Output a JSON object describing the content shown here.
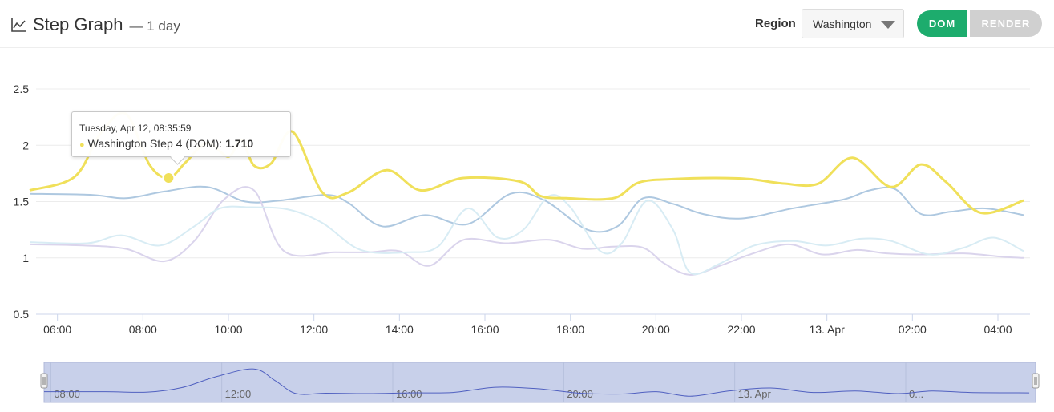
{
  "header": {
    "title": "Step Graph",
    "subtitle": "— 1 day",
    "title_icon": "line-chart-icon",
    "region_label": "Region",
    "region_value": "Washington",
    "dom_label": "DOM",
    "render_label": "RENDER"
  },
  "tooltip": {
    "date": "Tuesday, Apr 12, 08:35:59",
    "series_label": "Washington Step 4 (DOM):",
    "value": "1.710"
  },
  "colors": {
    "accent_green": "#1dac6d",
    "inactive_grey": "#d0d0d0",
    "highlight_yellow": "#f0e05a"
  },
  "chart_data": {
    "type": "line",
    "x_unit": "hours",
    "xlim": [
      5.5,
      28.75
    ],
    "ylim": [
      0.5,
      2.6
    ],
    "y_ticks": [
      {
        "value": 0.5,
        "label": "0.5"
      },
      {
        "value": 1,
        "label": "1"
      },
      {
        "value": 1.5,
        "label": "1.5"
      },
      {
        "value": 2,
        "label": "2"
      },
      {
        "value": 2.5,
        "label": "2.5"
      }
    ],
    "x_ticks": [
      {
        "value": 6,
        "label": "06:00"
      },
      {
        "value": 8,
        "label": "08:00"
      },
      {
        "value": 10,
        "label": "10:00"
      },
      {
        "value": 12,
        "label": "12:00"
      },
      {
        "value": 14,
        "label": "14:00"
      },
      {
        "value": 16,
        "label": "16:00"
      },
      {
        "value": 18,
        "label": "18:00"
      },
      {
        "value": 20,
        "label": "20:00"
      },
      {
        "value": 22,
        "label": "22:00"
      },
      {
        "value": 24,
        "label": "13. Apr"
      },
      {
        "value": 26,
        "label": "02:00"
      },
      {
        "value": 28,
        "label": "04:00"
      }
    ],
    "navigator_labels": [
      {
        "value": 8,
        "label": "08:00"
      },
      {
        "value": 12,
        "label": "12:00"
      },
      {
        "value": 16,
        "label": "16:00"
      },
      {
        "value": 20,
        "label": "20:00"
      },
      {
        "value": 24,
        "label": "13. Apr"
      },
      {
        "value": 28,
        "label": "0..."
      }
    ],
    "grid": true,
    "series": [
      {
        "color": "#aec8e0",
        "x": [
          5.35,
          6.8,
          7.6,
          8.5,
          9.5,
          10.4,
          11.2,
          12.3,
          12.8,
          13.6,
          14.6,
          15.6,
          16.6,
          17.4,
          18.4,
          19.1,
          19.7,
          20.4,
          21.1,
          22.0,
          23.2,
          24.4,
          25.0,
          25.6,
          26.2,
          26.9,
          27.7,
          28.6
        ],
        "y": [
          1.57,
          1.56,
          1.53,
          1.59,
          1.63,
          1.5,
          1.51,
          1.56,
          1.49,
          1.28,
          1.38,
          1.3,
          1.57,
          1.51,
          1.25,
          1.28,
          1.53,
          1.48,
          1.39,
          1.35,
          1.44,
          1.52,
          1.6,
          1.61,
          1.39,
          1.41,
          1.44,
          1.38
        ]
      },
      {
        "color": "#dad4ec",
        "x": [
          5.35,
          6.6,
          7.6,
          8.5,
          9.2,
          9.9,
          10.6,
          11.3,
          12.5,
          13.3,
          14.0,
          14.7,
          15.5,
          16.5,
          17.5,
          18.3,
          19.0,
          19.7,
          20.2,
          20.8,
          21.5,
          22.2,
          23.1,
          23.9,
          24.7,
          25.4,
          26.2,
          27.2,
          28.1,
          28.6
        ],
        "y": [
          1.12,
          1.11,
          1.08,
          0.97,
          1.15,
          1.52,
          1.6,
          1.06,
          1.05,
          1.05,
          1.06,
          0.93,
          1.16,
          1.13,
          1.16,
          1.08,
          1.1,
          1.09,
          0.95,
          0.85,
          0.93,
          1.03,
          1.12,
          1.03,
          1.07,
          1.04,
          1.03,
          1.04,
          1.01,
          1.0
        ]
      },
      {
        "color": "#d8ecf4",
        "x": [
          5.35,
          6.7,
          7.5,
          8.4,
          9.2,
          9.8,
          10.5,
          11.4,
          12.2,
          13.1,
          14.2,
          14.9,
          15.6,
          16.3,
          16.9,
          17.5,
          18.0,
          18.7,
          19.2,
          19.8,
          20.4,
          20.8,
          21.5,
          22.3,
          23.2,
          24.0,
          24.8,
          25.5,
          26.4,
          27.2,
          27.9,
          28.6
        ],
        "y": [
          1.14,
          1.13,
          1.2,
          1.11,
          1.28,
          1.44,
          1.45,
          1.43,
          1.31,
          1.07,
          1.05,
          1.1,
          1.44,
          1.18,
          1.25,
          1.55,
          1.45,
          1.06,
          1.13,
          1.51,
          1.25,
          0.87,
          0.95,
          1.11,
          1.15,
          1.11,
          1.17,
          1.15,
          1.03,
          1.09,
          1.18,
          1.06
        ]
      },
      {
        "color": "#f0e05a",
        "x": [
          5.35,
          6.4,
          7.0,
          7.6,
          8.15,
          8.6,
          9.0,
          9.5,
          10.0,
          10.3,
          10.6,
          11.0,
          11.5,
          12.2,
          12.8,
          13.7,
          14.5,
          15.5,
          16.8,
          17.3,
          17.9,
          19.0,
          19.6,
          20.4,
          21.4,
          22.2,
          23.0,
          23.8,
          24.6,
          25.5,
          26.2,
          26.8,
          27.6,
          28.6
        ],
        "y": [
          1.6,
          1.72,
          2.1,
          2.28,
          1.83,
          1.71,
          1.85,
          2.02,
          1.9,
          2.05,
          1.82,
          1.84,
          2.12,
          1.58,
          1.58,
          1.78,
          1.6,
          1.71,
          1.68,
          1.55,
          1.53,
          1.53,
          1.67,
          1.7,
          1.71,
          1.7,
          1.66,
          1.66,
          1.89,
          1.63,
          1.83,
          1.67,
          1.4,
          1.51
        ]
      }
    ],
    "highlight_point": {
      "x": 8.6,
      "y": 1.71
    },
    "navigator_series": {
      "color": "#5060c0",
      "x": [
        5.35,
        6.8,
        7.8,
        8.6,
        9.4,
        10.3,
        10.8,
        11.3,
        12.0,
        13.0,
        14.0,
        15.0,
        16.0,
        17.0,
        18.0,
        19.0,
        19.8,
        20.6,
        21.5,
        22.5,
        23.5,
        24.5,
        25.5,
        26.3,
        27.2,
        28.6
      ],
      "y": [
        1.6,
        1.6,
        1.59,
        1.71,
        2.0,
        2.21,
        1.9,
        1.55,
        1.56,
        1.55,
        1.57,
        1.58,
        1.72,
        1.68,
        1.56,
        1.54,
        1.6,
        1.48,
        1.62,
        1.7,
        1.58,
        1.62,
        1.55,
        1.62,
        1.58,
        1.57
      ]
    }
  }
}
